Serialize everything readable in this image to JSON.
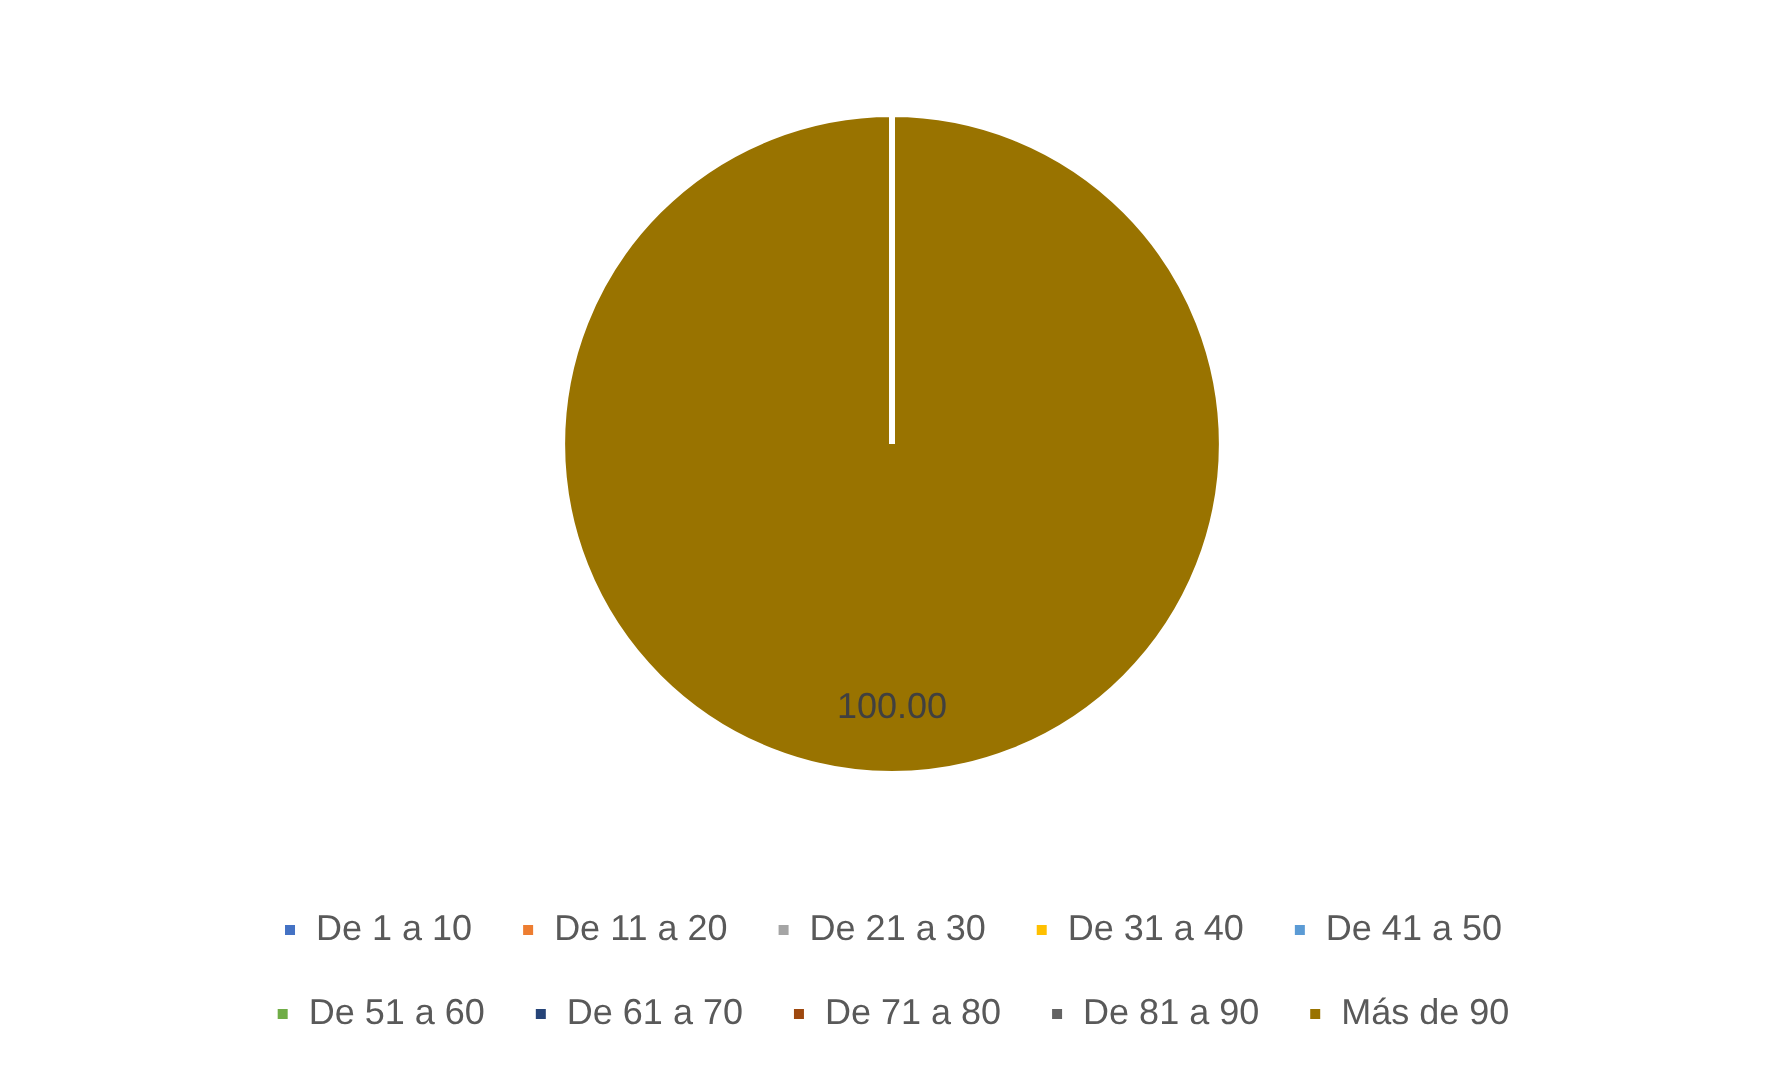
{
  "chart_data": {
    "type": "pie",
    "categories": [
      "De 1 a 10",
      "De 11 a 20",
      "De 21 a 30",
      "De 31 a 40",
      "De 41 a 50",
      "De 51 a 60",
      "De 61 a 70",
      "De 71 a 80",
      "De 81 a 90",
      "Más de 90"
    ],
    "values": [
      0,
      0,
      0,
      0,
      0,
      0,
      0,
      0,
      0,
      100
    ],
    "colors": [
      "#4472c4",
      "#ed7d31",
      "#a5a5a5",
      "#ffc000",
      "#5b9bd5",
      "#70ad47",
      "#264478",
      "#9e480e",
      "#636363",
      "#997300"
    ],
    "value_labels": [
      null,
      null,
      null,
      null,
      null,
      null,
      null,
      null,
      null,
      "100.00"
    ],
    "legend": "bottom"
  }
}
